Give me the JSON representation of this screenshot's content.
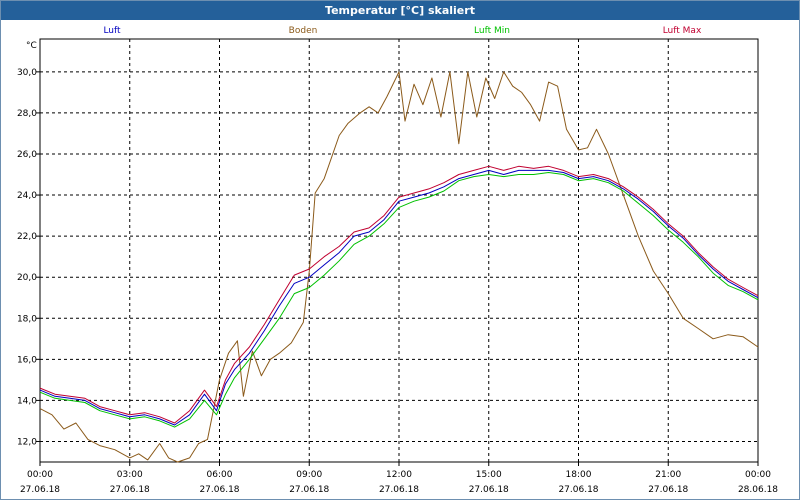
{
  "window": {
    "title": "Temperatur [°C] skaliert"
  },
  "chart_data": {
    "type": "line",
    "title": "Temperatur [°C] skaliert",
    "ylabel": "°C",
    "ylim": [
      11.0,
      31.6
    ],
    "yticks": [
      12.0,
      14.0,
      16.0,
      18.0,
      20.0,
      22.0,
      24.0,
      26.0,
      28.0,
      30.0
    ],
    "ytick_labels": [
      "12,0",
      "14,0",
      "16,0",
      "18,0",
      "20,0",
      "22,0",
      "24,0",
      "26,0",
      "28,0",
      "30,0"
    ],
    "xlim": [
      0,
      24
    ],
    "xticks": [
      0,
      3,
      6,
      9,
      12,
      15,
      18,
      21,
      24
    ],
    "xtick_times": [
      "00:00",
      "03:00",
      "06:00",
      "09:00",
      "12:00",
      "15:00",
      "18:00",
      "21:00",
      "00:00"
    ],
    "xtick_dates": [
      "27.06.18",
      "27.06.18",
      "27.06.18",
      "27.06.18",
      "27.06.18",
      "27.06.18",
      "27.06.18",
      "27.06.18",
      "28.06.18"
    ],
    "grid": true,
    "series": [
      {
        "name": "Luft",
        "color": "#0000c0",
        "x": [
          0,
          0.5,
          1,
          1.5,
          2,
          2.5,
          3,
          3.5,
          4,
          4.5,
          5,
          5.5,
          5.9,
          6.2,
          6.5,
          7,
          7.5,
          8,
          8.5,
          9,
          9.5,
          10,
          10.5,
          11,
          11.5,
          12,
          12.5,
          13,
          13.5,
          14,
          14.5,
          15,
          15.5,
          16,
          16.5,
          17,
          17.5,
          18,
          18.5,
          19,
          19.5,
          20,
          20.5,
          21,
          21.5,
          22,
          22.5,
          23,
          23.5,
          24
        ],
        "values": [
          14.5,
          14.2,
          14.1,
          14.0,
          13.6,
          13.4,
          13.2,
          13.3,
          13.1,
          12.8,
          13.3,
          14.3,
          13.5,
          14.8,
          15.5,
          16.3,
          17.4,
          18.6,
          19.7,
          20.0,
          20.6,
          21.2,
          22.0,
          22.2,
          22.8,
          23.7,
          23.9,
          24.1,
          24.4,
          24.8,
          25.0,
          25.2,
          25.0,
          25.2,
          25.2,
          25.2,
          25.1,
          24.8,
          24.9,
          24.7,
          24.3,
          23.8,
          23.2,
          22.5,
          21.9,
          21.1,
          20.4,
          19.8,
          19.4,
          19.0
        ]
      },
      {
        "name": "Boden",
        "color": "#8b5a1a",
        "x": [
          0,
          0.4,
          0.8,
          1.2,
          1.6,
          2,
          2.5,
          3,
          3.3,
          3.6,
          4,
          4.3,
          4.6,
          5,
          5.3,
          5.6,
          6,
          6.3,
          6.6,
          6.8,
          7.1,
          7.4,
          7.7,
          8,
          8.4,
          8.8,
          9,
          9.2,
          9.5,
          10,
          10.3,
          10.7,
          11,
          11.3,
          11.6,
          12,
          12.2,
          12.5,
          12.8,
          13.1,
          13.4,
          13.7,
          14,
          14.3,
          14.6,
          14.9,
          15.2,
          15.5,
          15.8,
          16.1,
          16.4,
          16.7,
          17,
          17.3,
          17.6,
          18,
          18.3,
          18.6,
          19,
          19.5,
          20,
          20.5,
          21,
          21.5,
          22,
          22.5,
          23,
          23.5,
          24
        ],
        "values": [
          13.6,
          13.3,
          12.6,
          12.9,
          12.1,
          11.8,
          11.6,
          11.2,
          11.4,
          11.1,
          11.9,
          11.2,
          11.0,
          11.2,
          11.9,
          12.1,
          15.0,
          16.3,
          16.9,
          14.2,
          16.4,
          15.2,
          16.0,
          16.3,
          16.8,
          17.8,
          20.3,
          24.1,
          24.8,
          26.9,
          27.5,
          28.0,
          28.3,
          28.0,
          28.8,
          30.0,
          27.6,
          29.4,
          28.4,
          29.7,
          27.8,
          30.0,
          26.5,
          30.0,
          27.8,
          29.7,
          28.7,
          30.0,
          29.3,
          29.0,
          28.4,
          27.6,
          29.5,
          29.3,
          27.2,
          26.2,
          26.3,
          27.2,
          26.0,
          24.0,
          22.0,
          20.3,
          19.2,
          18.0,
          17.5,
          17.0,
          17.2,
          17.1,
          16.6
        ]
      },
      {
        "name": "Luft Min",
        "color": "#00c000",
        "x": [
          0,
          0.5,
          1,
          1.5,
          2,
          2.5,
          3,
          3.5,
          4,
          4.5,
          5,
          5.5,
          5.9,
          6.2,
          6.5,
          7,
          7.5,
          8,
          8.5,
          9,
          9.5,
          10,
          10.5,
          11,
          11.5,
          12,
          12.5,
          13,
          13.5,
          14,
          14.5,
          15,
          15.5,
          16,
          16.5,
          17,
          17.5,
          18,
          18.5,
          19,
          19.5,
          20,
          20.5,
          21,
          21.5,
          22,
          22.5,
          23,
          23.5,
          24
        ],
        "values": [
          14.4,
          14.1,
          14.0,
          13.9,
          13.5,
          13.3,
          13.1,
          13.2,
          13.0,
          12.7,
          13.1,
          14.0,
          13.3,
          14.3,
          15.1,
          16.0,
          17.0,
          18.0,
          19.2,
          19.5,
          20.1,
          20.8,
          21.6,
          22.0,
          22.6,
          23.4,
          23.7,
          23.9,
          24.2,
          24.7,
          24.9,
          25.0,
          24.9,
          25.0,
          25.0,
          25.1,
          25.0,
          24.7,
          24.8,
          24.6,
          24.2,
          23.6,
          23.0,
          22.3,
          21.7,
          21.0,
          20.2,
          19.6,
          19.3,
          18.9
        ]
      },
      {
        "name": "Luft Max",
        "color": "#c00030",
        "x": [
          0,
          0.5,
          1,
          1.5,
          2,
          2.5,
          3,
          3.5,
          4,
          4.5,
          5,
          5.5,
          5.9,
          6.2,
          6.5,
          7,
          7.5,
          8,
          8.5,
          9,
          9.5,
          10,
          10.5,
          11,
          11.5,
          12,
          12.5,
          13,
          13.5,
          14,
          14.5,
          15,
          15.5,
          16,
          16.5,
          17,
          17.5,
          18,
          18.5,
          19,
          19.5,
          20,
          20.5,
          21,
          21.5,
          22,
          22.5,
          23,
          23.5,
          24
        ],
        "values": [
          14.6,
          14.3,
          14.2,
          14.1,
          13.7,
          13.5,
          13.3,
          13.4,
          13.2,
          12.9,
          13.5,
          14.5,
          13.7,
          15.0,
          15.8,
          16.6,
          17.7,
          18.9,
          20.1,
          20.4,
          21.0,
          21.5,
          22.2,
          22.4,
          23.0,
          23.9,
          24.1,
          24.3,
          24.6,
          25.0,
          25.2,
          25.4,
          25.2,
          25.4,
          25.3,
          25.4,
          25.2,
          24.9,
          25.0,
          24.8,
          24.4,
          23.9,
          23.3,
          22.6,
          22.0,
          21.2,
          20.5,
          19.9,
          19.5,
          19.1
        ]
      }
    ]
  }
}
